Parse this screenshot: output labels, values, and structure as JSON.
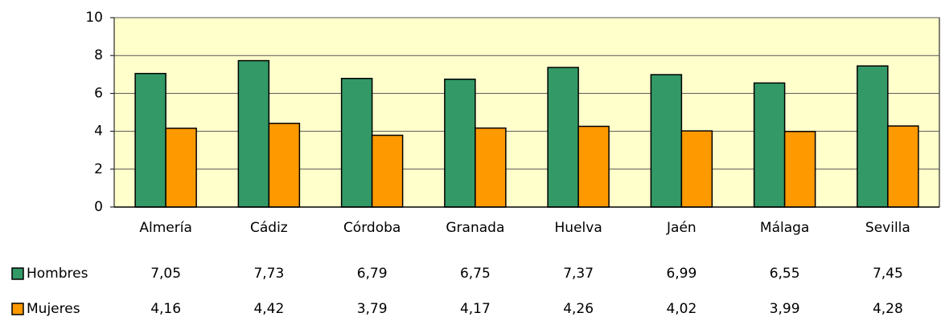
{
  "chart_data": {
    "type": "bar",
    "categories": [
      "Almería",
      "Cádiz",
      "Córdoba",
      "Granada",
      "Huelva",
      "Jaén",
      "Málaga",
      "Sevilla"
    ],
    "series": [
      {
        "name": "Hombres",
        "color": "#339966",
        "values": [
          7.05,
          7.73,
          6.79,
          6.75,
          7.37,
          6.99,
          6.55,
          7.45
        ],
        "value_labels": [
          "7,05",
          "7,73",
          "6,79",
          "6,75",
          "7,37",
          "6,99",
          "6,55",
          "7,45"
        ]
      },
      {
        "name": "Mujeres",
        "color": "#ff9900",
        "values": [
          4.16,
          4.42,
          3.79,
          4.17,
          4.26,
          4.02,
          3.99,
          4.28
        ],
        "value_labels": [
          "4,16",
          "4,42",
          "3,79",
          "4,17",
          "4,26",
          "4,02",
          "3,99",
          "4,28"
        ]
      }
    ],
    "ylim": [
      0,
      10
    ],
    "yticks": [
      0,
      2,
      4,
      6,
      8,
      10
    ],
    "grid": true
  }
}
